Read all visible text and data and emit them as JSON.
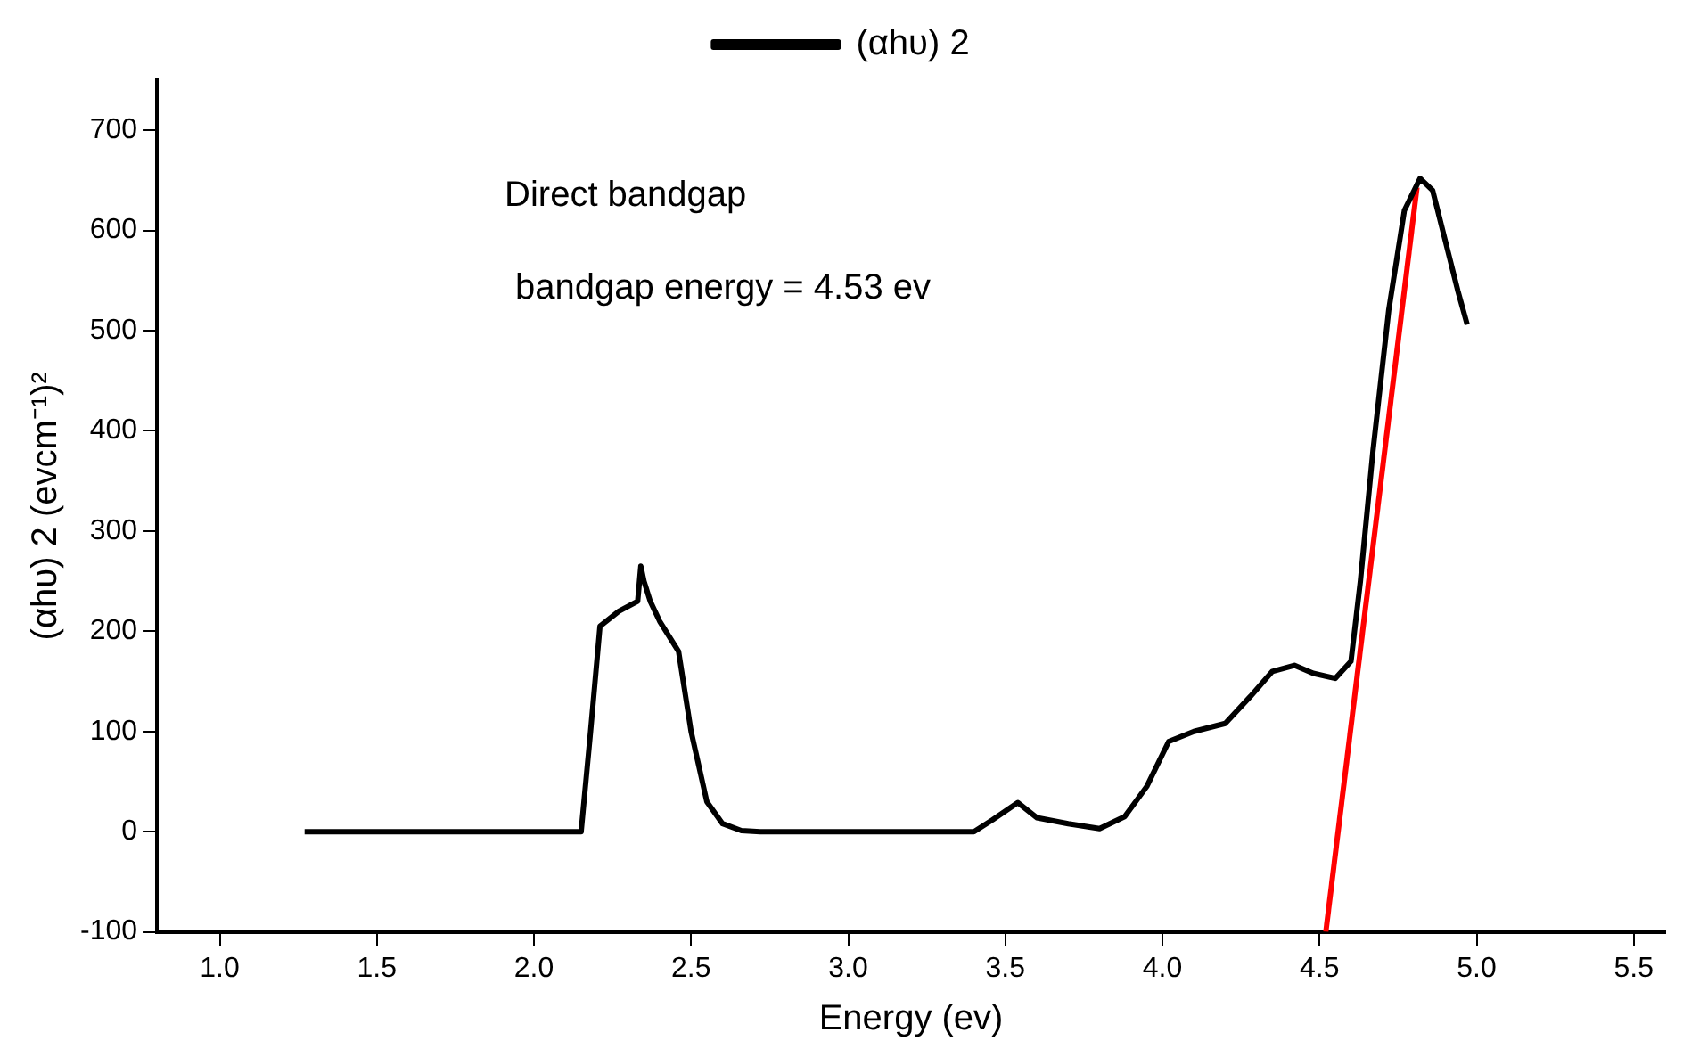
{
  "chart_data": {
    "type": "line",
    "xlabel": "Energy (ev)",
    "ylabel": "(αhυ) 2 (evcm⁻¹)²",
    "xlim": [
      0.8,
      5.6
    ],
    "xticks": [
      {
        "value": 1,
        "label": "1.0"
      },
      {
        "value": 1.5,
        "label": "1.5"
      },
      {
        "value": 2,
        "label": "2.0"
      },
      {
        "value": 2.5,
        "label": "2.5"
      },
      {
        "value": 3,
        "label": "3.0"
      },
      {
        "value": 3.5,
        "label": "3.5"
      },
      {
        "value": 4,
        "label": "4.0"
      },
      {
        "value": 4.5,
        "label": "4.5"
      },
      {
        "value": 5,
        "label": "5.0"
      },
      {
        "value": 5.5,
        "label": "5.5"
      }
    ],
    "ylim": [
      -100,
      750
    ],
    "yticks": [
      -100,
      0,
      100,
      200,
      300,
      400,
      500,
      600,
      700
    ],
    "grid": false,
    "legend": "top",
    "marker": "none",
    "line_style": "solid",
    "annotations": [
      "Direct bandgap",
      "bandgap energy = 4.53 ev"
    ],
    "series": [
      {
        "name": "(αhυ) 2",
        "color": "#000000",
        "x": [
          1.27,
          2.15,
          2.18,
          2.21,
          2.27,
          2.33,
          2.34,
          2.35,
          2.37,
          2.4,
          2.46,
          2.5,
          2.55,
          2.6,
          2.66,
          2.72,
          3.4,
          3.46,
          3.54,
          3.6,
          3.7,
          3.8,
          3.88,
          3.95,
          4.02,
          4.1,
          4.2,
          4.28,
          4.35,
          4.42,
          4.48,
          4.55,
          4.6,
          4.63,
          4.67,
          4.72,
          4.77,
          4.82,
          4.86,
          4.9,
          4.94,
          4.97
        ],
        "values": [
          0,
          0,
          100,
          205,
          220,
          230,
          265,
          250,
          230,
          210,
          180,
          100,
          30,
          8,
          1,
          0,
          0,
          12,
          29,
          14,
          8,
          3,
          15,
          45,
          90,
          100,
          108,
          135,
          160,
          166,
          158,
          153,
          170,
          250,
          380,
          520,
          620,
          652,
          640,
          590,
          540,
          506
        ]
      },
      {
        "color": "#ff0000",
        "x": [
          4.52,
          4.81
        ],
        "values": [
          -100,
          643
        ]
      }
    ]
  }
}
